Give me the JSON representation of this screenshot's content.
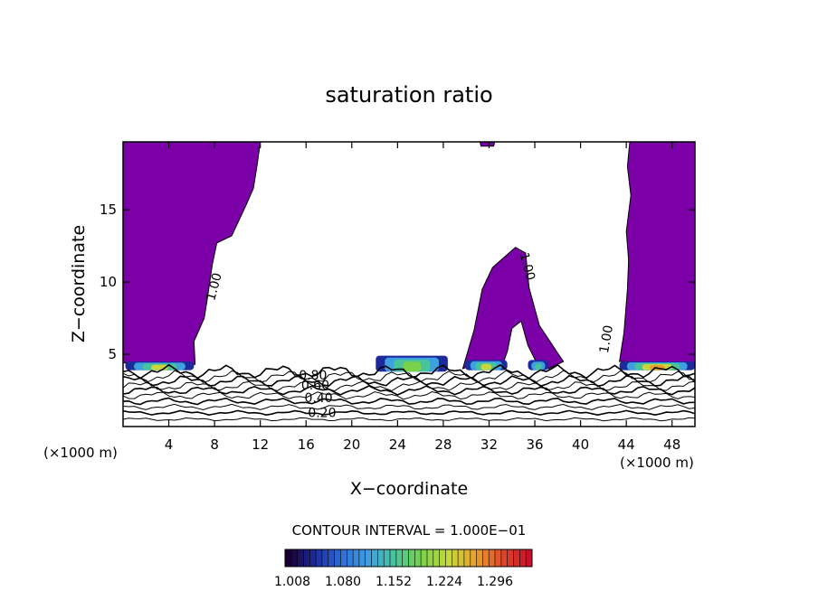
{
  "chart_data": {
    "type": "contour",
    "title": "saturation ratio",
    "xlabel": "X−coordinate",
    "ylabel": "Z−coordinate",
    "x_unit_label": "(×1000 m)",
    "x_unit_label_right": "(×1000 m)",
    "xlim": [
      0,
      50
    ],
    "ylim": [
      0,
      19.7
    ],
    "x_ticks": [
      4,
      8,
      12,
      16,
      20,
      24,
      28,
      32,
      36,
      40,
      44,
      48
    ],
    "y_ticks": [
      5,
      10,
      15
    ],
    "contour_interval_text": "CONTOUR INTERVAL = 1.000E−01",
    "contour_levels": [
      0.1,
      0.2,
      0.3,
      0.4,
      0.5,
      0.6,
      0.7,
      0.8,
      0.9,
      1.0
    ],
    "contour_labels": [
      {
        "text": "0.80",
        "x": 16.6,
        "y": 3.25
      },
      {
        "text": "0.60",
        "x": 16.8,
        "y": 2.55
      },
      {
        "text": "0.40",
        "x": 17.1,
        "y": 1.7
      },
      {
        "text": "0.20",
        "x": 17.4,
        "y": 0.65
      },
      {
        "text": "1.00",
        "x": 8.3,
        "y": 9.6
      },
      {
        "text": "1.00",
        "x": 35.0,
        "y": 11.0
      },
      {
        "text": "1.00",
        "x": 42.6,
        "y": 6.0
      }
    ],
    "saturated_region_color": "#7b00a8",
    "colorbar": {
      "tick_labels": [
        "1.008",
        "1.080",
        "1.152",
        "1.224",
        "1.296"
      ],
      "colors": [
        "#1a0030",
        "#1c2a9c",
        "#2f6fd6",
        "#3fa0e0",
        "#49c49a",
        "#7ad24a",
        "#c7d83a",
        "#e6a12e",
        "#e0482a",
        "#c8102a"
      ]
    }
  }
}
